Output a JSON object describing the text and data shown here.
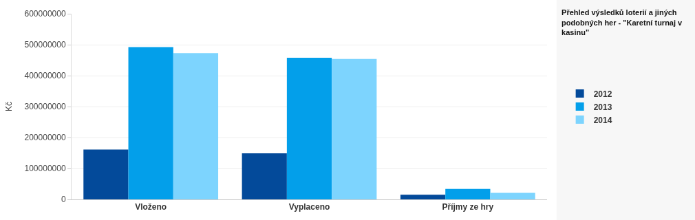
{
  "chart_data": {
    "type": "bar",
    "title": "Přehled výsledků loterií a jiných podobných her - \"Karetní turnaj v kasinu\"",
    "ylabel": "Kč",
    "categories": [
      "Vloženo",
      "Vyplaceno",
      "Příjmy ze hry"
    ],
    "series": [
      {
        "name": "2012",
        "color": "#034a9a",
        "values": [
          161000000,
          149000000,
          15000000
        ]
      },
      {
        "name": "2013",
        "color": "#039fea",
        "values": [
          492000000,
          458000000,
          34000000
        ]
      },
      {
        "name": "2014",
        "color": "#7dd4fe",
        "values": [
          473000000,
          454000000,
          21000000
        ]
      }
    ],
    "ylim": [
      0,
      600000000
    ],
    "yticks": [
      0,
      100000000,
      200000000,
      300000000,
      400000000,
      500000000,
      600000000
    ],
    "grid": "y",
    "legend": "right"
  }
}
